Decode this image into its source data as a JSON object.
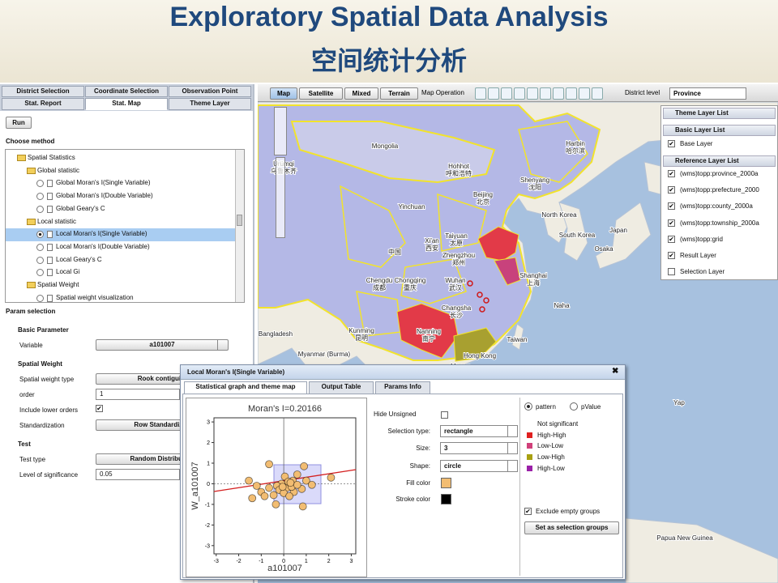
{
  "header": {
    "title": "Exploratory Spatial Data Analysis",
    "subtitle": "空间统计分析"
  },
  "left_panel": {
    "tabs_row1": [
      "District Selection",
      "Coordinate Selection",
      "Observation Point"
    ],
    "tabs_row2": [
      "Stat. Report",
      "Stat. Map",
      "Theme Layer"
    ],
    "run_button": "Run",
    "choose_method": "Choose method",
    "tree": {
      "label": "Spatial Statistics",
      "groups": [
        {
          "label": "Global statistic",
          "items": [
            {
              "label": "Global Moran's I(Single Variable)"
            },
            {
              "label": "Global Moran's I(Double Variable)"
            },
            {
              "label": "Global Geary's C"
            }
          ]
        },
        {
          "label": "Local statistic",
          "items": [
            {
              "label": "Local Moran's I(Single Variable)",
              "selected": true
            },
            {
              "label": "Local Moran's I(Double Variable)"
            },
            {
              "label": "Local Geary's C"
            },
            {
              "label": "Local Gi"
            }
          ]
        },
        {
          "label": "Spatial Weight",
          "items": [
            {
              "label": "Spatial weight visualization"
            }
          ]
        }
      ]
    },
    "param_selection": "Param selection",
    "sections": [
      {
        "title": "Basic Parameter",
        "fields": [
          {
            "label": "Variable",
            "kind": "select",
            "value": "a101007"
          }
        ]
      },
      {
        "title": "Spatial Weight",
        "fields": [
          {
            "label": "Spatial weight type",
            "kind": "select",
            "value": "Rook contiguity"
          },
          {
            "label": "order",
            "kind": "input",
            "value": "1"
          },
          {
            "label": "Include lower orders",
            "kind": "checkbox",
            "checked": true
          },
          {
            "label": "Standardization",
            "kind": "select",
            "value": "Row Standardized"
          }
        ]
      },
      {
        "title": "Test",
        "fields": [
          {
            "label": "Test type",
            "kind": "select",
            "value": "Random Distribution"
          },
          {
            "label": "Level of significance",
            "kind": "input",
            "value": "0.05"
          }
        ]
      }
    ]
  },
  "map": {
    "types": [
      "Map",
      "Satellite",
      "Mixed",
      "Terrain"
    ],
    "operation_label": "Map Operation",
    "district_label": "District level",
    "district_value": "Province",
    "labels": [
      {
        "name": "Mongolia"
      },
      {
        "name": "Ürümqi",
        "local": "乌鲁木齐"
      },
      {
        "name": "Yinchuan"
      },
      {
        "name": "Hohhot",
        "local": "呼和浩特"
      },
      {
        "name": "Beijing",
        "local": "北京"
      },
      {
        "name": "Shenyang",
        "local": "沈阳"
      },
      {
        "name": "Harbin",
        "local": "哈尔滨"
      },
      {
        "name": "Xi'an",
        "local": "西安"
      },
      {
        "name": "Taiyuan",
        "local": "太原"
      },
      {
        "name": "Zhengzhou",
        "local": "郑州"
      },
      {
        "name": "中国"
      },
      {
        "name": "Chengdu",
        "local": "成都"
      },
      {
        "name": "Chongqing",
        "local": "重庆"
      },
      {
        "name": "Wuhan",
        "local": "武汉"
      },
      {
        "name": "Changsha",
        "local": "长沙"
      },
      {
        "name": "Nanning",
        "local": "南宁"
      },
      {
        "name": "Kunming",
        "local": "昆明"
      },
      {
        "name": "Shanghai",
        "local": "上海"
      },
      {
        "name": "Taiwan"
      },
      {
        "name": "Hong Kong"
      },
      {
        "name": "Macau"
      },
      {
        "name": "North Korea"
      },
      {
        "name": "South Korea"
      },
      {
        "name": "Japan"
      },
      {
        "name": "Osaka"
      },
      {
        "name": "Naha"
      },
      {
        "name": "Bangladesh"
      },
      {
        "name": "Myanmar (Burma)"
      },
      {
        "name": "Yap"
      },
      {
        "name": "Papua New Guinea"
      }
    ]
  },
  "layers": {
    "theme": "Theme Layer List",
    "basic": "Basic Layer List",
    "basic_items": [
      {
        "label": "Base Layer",
        "checked": true
      }
    ],
    "reference": "Reference Layer List",
    "reference_items": [
      {
        "label": "(wms)topp:province_2000a",
        "checked": true
      },
      {
        "label": "(wms)topp:prefecture_2000",
        "checked": true
      },
      {
        "label": "(wms)topp:county_2000a",
        "checked": true
      },
      {
        "label": "(wms)topp:township_2000a",
        "checked": true
      },
      {
        "label": "(wms)topp:grid",
        "checked": true
      },
      {
        "label": "Result Layer",
        "checked": true
      },
      {
        "label": "Selection Layer",
        "checked": false
      }
    ]
  },
  "dialog": {
    "title": "Local Moran's I(Single Variable)",
    "tabs": [
      "Statistical graph and theme map",
      "Output Table",
      "Params Info"
    ],
    "scatter": {
      "type": "scatter",
      "title": "Moran's I=0.20166",
      "xlabel": "a101007",
      "ylabel": "W_a101007",
      "x": [
        -0.65,
        0.9,
        0.6,
        0.05,
        0.4,
        -0.1,
        0.15,
        -0.3,
        -0.65,
        -1,
        -0.85,
        -0.35,
        0.45,
        1,
        1.25,
        0.8,
        0.2,
        -0.2,
        -1.2,
        -1.55,
        0.85,
        -1.4,
        0.35,
        0,
        -0.45,
        0.6,
        -0.05,
        0.25,
        2.1,
        0.3
      ],
      "y": [
        0.95,
        0.85,
        0.45,
        0.35,
        0.15,
        0,
        -0.2,
        -0.1,
        -0.2,
        -0.4,
        -0.6,
        -1,
        -0.4,
        0.15,
        -0.05,
        -0.25,
        0.1,
        -0.3,
        -0.1,
        0.15,
        -1.1,
        -0.7,
        -0.15,
        -0.45,
        -0.55,
        -0.05,
        -0.15,
        -0.6,
        0.3,
        0.05
      ],
      "xlim": [
        -3.1,
        3.2
      ],
      "ylim": [
        -3.4,
        3.2
      ],
      "xticks": [
        -3,
        -2,
        -1,
        0,
        1,
        2,
        3
      ],
      "yticks": [
        -3,
        -2,
        -1,
        0,
        1,
        2,
        3
      ]
    },
    "controls": {
      "hide_unsigned": "Hide Unsigned",
      "selection_type": {
        "label": "Selection type:",
        "value": "rectangle"
      },
      "size": {
        "label": "Size:",
        "value": "3"
      },
      "shape": {
        "label": "Shape:",
        "value": "circle"
      },
      "fill_color": {
        "label": "Fill color",
        "color": "#f2bd72"
      },
      "stroke_color": {
        "label": "Stroke color",
        "color": "#000000"
      }
    },
    "legend": {
      "options": [
        {
          "label": "pattern",
          "selected": true
        },
        {
          "label": "pValue",
          "selected": false
        }
      ],
      "items": [
        {
          "label": "Not significant"
        },
        {
          "label": "High-High",
          "color": "#e02020"
        },
        {
          "label": "Low-Low",
          "color": "#d0407a"
        },
        {
          "label": "Low-High",
          "color": "#a8a010"
        },
        {
          "label": "High-Low",
          "color": "#9a20a8"
        }
      ],
      "exclude": "Exclude empty groups",
      "button": "Set as selection groups"
    }
  }
}
